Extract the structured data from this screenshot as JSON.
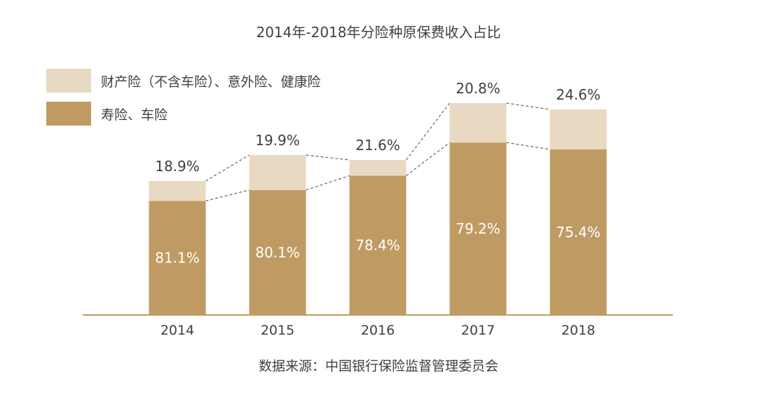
{
  "chart_data": {
    "type": "bar",
    "stacked": true,
    "title": "2014年-2018年分险种原保费收入占比",
    "categories": [
      "2014",
      "2015",
      "2016",
      "2017",
      "2018"
    ],
    "series": [
      {
        "name": "寿险、车险",
        "values": [
          81.1,
          80.1,
          78.4,
          79.2,
          75.4
        ],
        "labels": [
          "81.1%",
          "80.1%",
          "78.4%",
          "79.2%",
          "75.4%"
        ],
        "color": "#bf9b63"
      },
      {
        "name": "财产险（不含车险）、意外险、健康险",
        "values": [
          18.9,
          19.9,
          21.6,
          20.8,
          24.6
        ],
        "labels": [
          "18.9%",
          "19.9%",
          "21.6%",
          "20.8%",
          "24.6%"
        ],
        "color": "#e8d9c3"
      }
    ],
    "legend_position": "top-left",
    "grid": false,
    "source": "数据来源：中国银行保险监督管理委员会"
  },
  "colors": {
    "axis": "#bf9b63",
    "connector": "#666666",
    "text": "#404040",
    "inner_label": "#ffffff"
  }
}
